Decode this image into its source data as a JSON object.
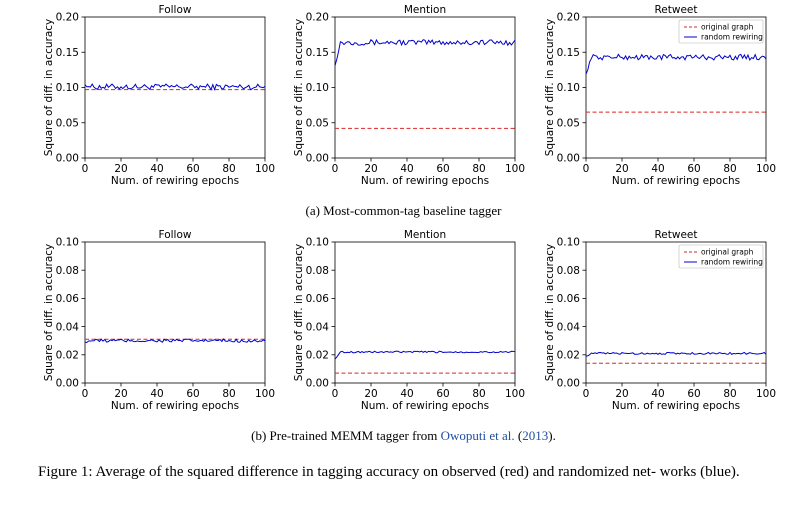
{
  "chart_data": [
    {
      "type": "line",
      "row": "a",
      "panel": "Follow",
      "title": "Follow",
      "xlabel": "Num. of rewiring epochs",
      "ylabel": "Square of diff. in accuracy",
      "xlim": [
        0,
        100
      ],
      "ylim": [
        0,
        0.2
      ],
      "xticks": [
        0,
        20,
        40,
        60,
        80,
        100
      ],
      "yticks": [
        "0.00",
        "0.05",
        "0.10",
        "0.15",
        "0.20"
      ],
      "original": 0.097,
      "random_mean": 0.101,
      "random_amp": 0.004,
      "random_start": 0.104,
      "legend": false,
      "series": [
        {
          "name": "original graph",
          "color": "#d62728",
          "style": "dashed"
        },
        {
          "name": "random rewiring",
          "color": "#0000cc",
          "style": "solid"
        }
      ]
    },
    {
      "type": "line",
      "row": "a",
      "panel": "Mention",
      "title": "Mention",
      "xlabel": "Num. of rewiring epochs",
      "ylabel": "Square of diff. in accuracy",
      "xlim": [
        0,
        100
      ],
      "ylim": [
        0,
        0.2
      ],
      "xticks": [
        0,
        20,
        40,
        60,
        80,
        100
      ],
      "yticks": [
        "0.00",
        "0.05",
        "0.10",
        "0.15",
        "0.20"
      ],
      "original": 0.042,
      "random_mean": 0.164,
      "random_amp": 0.004,
      "random_start": 0.131,
      "legend": false,
      "series": [
        {
          "name": "original graph",
          "color": "#d62728",
          "style": "dashed"
        },
        {
          "name": "random rewiring",
          "color": "#0000cc",
          "style": "solid"
        }
      ]
    },
    {
      "type": "line",
      "row": "a",
      "panel": "Retweet",
      "title": "Retweet",
      "xlabel": "Num. of rewiring epochs",
      "ylabel": "Square of diff. in accuracy",
      "xlim": [
        0,
        100
      ],
      "ylim": [
        0,
        0.2
      ],
      "xticks": [
        0,
        20,
        40,
        60,
        80,
        100
      ],
      "yticks": [
        "0.00",
        "0.05",
        "0.10",
        "0.15",
        "0.20"
      ],
      "original": 0.065,
      "random_mean": 0.143,
      "random_amp": 0.004,
      "random_start": 0.119,
      "legend": true,
      "series": [
        {
          "name": "original graph",
          "color": "#d62728",
          "style": "dashed"
        },
        {
          "name": "random rewiring",
          "color": "#0000cc",
          "style": "solid"
        }
      ]
    },
    {
      "type": "line",
      "row": "b",
      "panel": "Follow",
      "title": "Follow",
      "xlabel": "Num. of rewiring epochs",
      "ylabel": "Square of diff. in accuracy",
      "xlim": [
        0,
        100
      ],
      "ylim": [
        0,
        0.1
      ],
      "xticks": [
        0,
        20,
        40,
        60,
        80,
        100
      ],
      "yticks": [
        "0.00",
        "0.02",
        "0.04",
        "0.06",
        "0.08",
        "0.10"
      ],
      "original": 0.031,
      "random_mean": 0.03,
      "random_amp": 0.0012,
      "random_start": 0.029,
      "legend": false,
      "series": [
        {
          "name": "original graph",
          "color": "#d62728",
          "style": "dashed"
        },
        {
          "name": "random rewiring",
          "color": "#0000cc",
          "style": "solid"
        }
      ]
    },
    {
      "type": "line",
      "row": "b",
      "panel": "Mention",
      "title": "Mention",
      "xlabel": "Num. of rewiring epochs",
      "ylabel": "Square of diff. in accuracy",
      "xlim": [
        0,
        100
      ],
      "ylim": [
        0,
        0.1
      ],
      "xticks": [
        0,
        20,
        40,
        60,
        80,
        100
      ],
      "yticks": [
        "0.00",
        "0.02",
        "0.04",
        "0.06",
        "0.08",
        "0.10"
      ],
      "original": 0.007,
      "random_mean": 0.022,
      "random_amp": 0.0006,
      "random_start": 0.017,
      "legend": false,
      "series": [
        {
          "name": "original graph",
          "color": "#d62728",
          "style": "dashed"
        },
        {
          "name": "random rewiring",
          "color": "#0000cc",
          "style": "solid"
        }
      ]
    },
    {
      "type": "line",
      "row": "b",
      "panel": "Retweet",
      "title": "Retweet",
      "xlabel": "Num. of rewiring epochs",
      "ylabel": "Square of diff. in accuracy",
      "xlim": [
        0,
        100
      ],
      "ylim": [
        0,
        0.1
      ],
      "xticks": [
        0,
        20,
        40,
        60,
        80,
        100
      ],
      "yticks": [
        "0.00",
        "0.02",
        "0.04",
        "0.06",
        "0.08",
        "0.10"
      ],
      "original": 0.014,
      "random_mean": 0.021,
      "random_amp": 0.0007,
      "random_start": 0.019,
      "legend": true,
      "series": [
        {
          "name": "original graph",
          "color": "#d62728",
          "style": "dashed"
        },
        {
          "name": "random rewiring",
          "color": "#0000cc",
          "style": "solid"
        }
      ]
    }
  ],
  "captions": {
    "a": "(a) Most-common-tag baseline tagger",
    "b_prefix": "(b) Pre-trained MEMM tagger from ",
    "b_cite_name": "Owoputi et al.",
    "b_cite_year": "2013",
    "b_suffix": ".",
    "figure": "Figure 1: Average of the squared difference in tagging accuracy on observed (red) and randomized net- works (blue)."
  }
}
